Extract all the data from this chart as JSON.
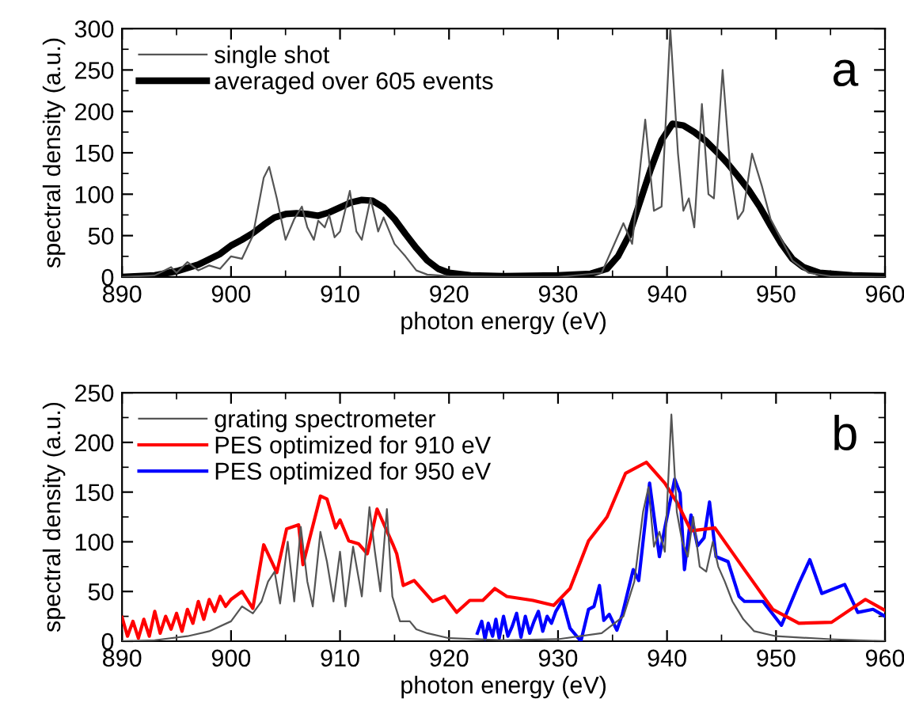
{
  "chart_data": [
    {
      "type": "line",
      "xlabel": "photon energy (eV)",
      "ylabel": "spectral density (a.u.)",
      "xlim": [
        890,
        960
      ],
      "ylim": [
        0,
        300
      ],
      "xticks": [
        890,
        900,
        910,
        920,
        930,
        940,
        950,
        960
      ],
      "yticks": [
        0,
        50,
        100,
        150,
        200,
        250,
        300
      ],
      "legend": "top left",
      "grid": false,
      "annotations": [
        "a"
      ],
      "series": [
        {
          "name": "single shot",
          "color": "#555555",
          "x": [
            890,
            893,
            894.5,
            895,
            896,
            897,
            898,
            899,
            900,
            901,
            902,
            903,
            903.5,
            904.2,
            905,
            905.8,
            906.5,
            907,
            907.6,
            908,
            908.6,
            909,
            909.5,
            910,
            910.9,
            911.5,
            912,
            912.8,
            913.5,
            914,
            915,
            916,
            917,
            918,
            920,
            925,
            930,
            934,
            936,
            936.8,
            938,
            938.8,
            939.5,
            940.3,
            941,
            941.5,
            942,
            942.5,
            943.2,
            943.8,
            944.3,
            945.1,
            945.8,
            946.5,
            947,
            947.8,
            948.7,
            949.5,
            950.5,
            951.5,
            953,
            955,
            960
          ],
          "values": [
            0,
            2,
            12,
            5,
            18,
            8,
            14,
            10,
            25,
            22,
            50,
            120,
            133,
            95,
            45,
            70,
            85,
            60,
            45,
            68,
            60,
            75,
            48,
            55,
            104,
            55,
            45,
            95,
            55,
            72,
            40,
            25,
            8,
            3,
            1,
            0,
            0,
            5,
            65,
            40,
            190,
            80,
            85,
            300,
            150,
            80,
            95,
            60,
            209,
            100,
            95,
            250,
            130,
            70,
            80,
            149,
            110,
            70,
            45,
            20,
            5,
            1,
            0
          ]
        },
        {
          "name": "averaged over 605 events",
          "color": "#000000",
          "x": [
            890,
            893,
            895,
            897,
            899,
            900,
            901,
            902,
            903,
            904,
            905,
            906,
            907,
            908,
            909,
            910,
            911,
            912,
            913,
            914,
            915,
            916,
            917,
            918,
            919,
            920,
            922,
            925,
            930,
            933,
            934.5,
            935.5,
            936.5,
            937.5,
            938.5,
            939.5,
            940.5,
            941.5,
            942.5,
            943.5,
            944.5,
            945.5,
            946.5,
            947.5,
            948.5,
            949.5,
            950.5,
            951.5,
            952.5,
            954,
            957,
            960
          ],
          "values": [
            0,
            2,
            7,
            15,
            28,
            38,
            45,
            53,
            63,
            72,
            76,
            77,
            76,
            74,
            78,
            84,
            90,
            93,
            92,
            84,
            70,
            52,
            35,
            20,
            10,
            5,
            2,
            1,
            2,
            4,
            10,
            25,
            50,
            90,
            130,
            165,
            185,
            183,
            175,
            165,
            152,
            138,
            122,
            105,
            85,
            62,
            40,
            22,
            12,
            5,
            2,
            1
          ]
        }
      ]
    },
    {
      "type": "line",
      "xlabel": "photon energy (eV)",
      "ylabel": "spectral density (a.u.)",
      "xlim": [
        890,
        960
      ],
      "ylim": [
        0,
        250
      ],
      "xticks": [
        890,
        900,
        910,
        920,
        930,
        940,
        950,
        960
      ],
      "yticks": [
        0,
        50,
        100,
        150,
        200,
        250
      ],
      "legend": "top left",
      "grid": false,
      "annotations": [
        "b"
      ],
      "series": [
        {
          "name": "grating spectrometer",
          "color": "#555555",
          "x": [
            890,
            893,
            896,
            898,
            900,
            901,
            902,
            902.8,
            903.4,
            904,
            904.5,
            905.2,
            905.8,
            906.4,
            907,
            907.5,
            908.2,
            908.8,
            909.4,
            910,
            910.5,
            911.2,
            912,
            912.7,
            913.2,
            913.7,
            914.3,
            914.8,
            915.5,
            916.4,
            917,
            918,
            920,
            925,
            930,
            934,
            936,
            937,
            937.8,
            938.3,
            938.8,
            939.3,
            939.8,
            940.4,
            940.9,
            941.4,
            941.9,
            942.4,
            943,
            943.6,
            944.2,
            944.7,
            945.3,
            946,
            947,
            948,
            950,
            955,
            960
          ],
          "values": [
            0,
            1,
            5,
            10,
            20,
            35,
            28,
            40,
            60,
            70,
            38,
            100,
            40,
            115,
            60,
            35,
            110,
            80,
            40,
            90,
            35,
            95,
            45,
            135,
            90,
            50,
            133,
            45,
            20,
            20,
            12,
            8,
            3,
            1,
            2,
            8,
            25,
            60,
            130,
            155,
            95,
            110,
            90,
            228,
            130,
            100,
            85,
            125,
            75,
            70,
            100,
            75,
            60,
            40,
            22,
            10,
            5,
            2,
            0
          ]
        },
        {
          "name": "PES optimized for 910 eV",
          "color": "#ff0000",
          "x": [
            890,
            890.5,
            891,
            891.5,
            892,
            892.5,
            893,
            893.5,
            894,
            894.5,
            895,
            895.5,
            896,
            896.5,
            897,
            897.5,
            898,
            898.5,
            899,
            899.5,
            900,
            901,
            902,
            903.0,
            904.2,
            905.1,
            906.2,
            906.6,
            908.2,
            908.8,
            909.6,
            910.0,
            910.8,
            911.7,
            912.5,
            913.4,
            914.9,
            915.2,
            915.8,
            916.8,
            918.5,
            919.6,
            920.7,
            921.9,
            923.1,
            924.2,
            925.3,
            927.7,
            929.6,
            931.1,
            932.8,
            934.5,
            936.2,
            938.1,
            939.8,
            941.0,
            942.2,
            944.4,
            947.1,
            949.7,
            952.1,
            955.1,
            958.2,
            960
          ],
          "values": [
            24,
            5,
            20,
            3,
            22,
            5,
            30,
            8,
            25,
            12,
            28,
            10,
            32,
            18,
            40,
            22,
            42,
            30,
            45,
            35,
            42,
            50,
            33,
            97,
            69,
            113,
            117,
            77,
            146,
            143,
            114,
            122,
            101,
            98,
            88,
            133,
            96,
            88,
            56,
            61,
            40,
            45,
            29,
            41,
            41,
            53,
            45,
            41,
            36,
            53,
            101,
            125,
            169,
            180,
            159,
            138,
            111,
            114,
            72,
            32,
            18,
            19,
            42,
            31
          ]
        },
        {
          "name": "PES optimized for 950 eV",
          "color": "#0000ff",
          "x": [
            922.6,
            923,
            923.3,
            923.6,
            924,
            924.3,
            924.6,
            925,
            925.4,
            925.8,
            926.2,
            926.6,
            927,
            927.4,
            927.8,
            928.2,
            928.6,
            929,
            929.4,
            929.8,
            930.4,
            931.1,
            932.1,
            932.8,
            933.3,
            933.8,
            934.2,
            934.7,
            935.4,
            935.9,
            936.9,
            937.4,
            938.4,
            939.3,
            939.8,
            940.7,
            941.2,
            941.6,
            942.2,
            942.8,
            943.4,
            943.9,
            944.5,
            945.6,
            946.6,
            947.1,
            948.8,
            950.5,
            952.1,
            953.1,
            954.2,
            956.3,
            957.5,
            958.9,
            960
          ],
          "values": [
            8,
            20,
            2,
            18,
            5,
            22,
            3,
            25,
            5,
            15,
            28,
            4,
            25,
            8,
            20,
            30,
            10,
            25,
            18,
            30,
            41,
            13,
            0,
            32,
            35,
            56,
            21,
            27,
            11,
            27,
            72,
            61,
            159,
            85,
            114,
            163,
            149,
            72,
            127,
            96,
            104,
            140,
            85,
            80,
            45,
            40,
            40,
            16,
            58,
            82,
            48,
            57,
            29,
            32,
            25
          ]
        }
      ]
    }
  ]
}
